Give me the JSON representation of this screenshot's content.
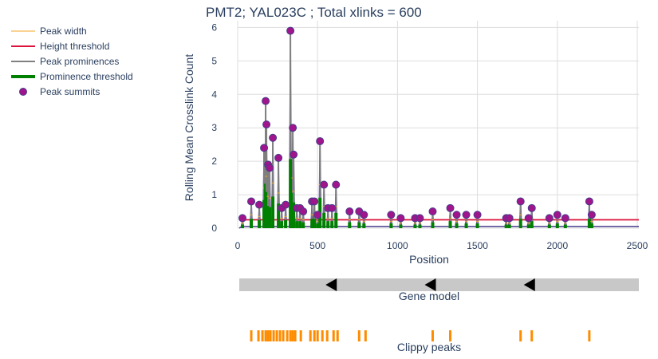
{
  "colors": {
    "peak_width": "#f5a623",
    "height_threshold": "#dc143c",
    "prominence": "#808080",
    "prominence_threshold": "#008000",
    "summit_fill": "#a0148c",
    "summit_edge": "#483d8b",
    "signal": "#483d8b",
    "gene_track": "#c8c8c8",
    "clippy_peaks": "#ff8c00",
    "text": "#2a3f5f",
    "grid": "#dddddd"
  },
  "chart_data": {
    "type": "line",
    "title": "PMT2; YAL023C ; Total xlinks = 600",
    "xlabel": "Position",
    "ylabel": "Rolling Mean Crosslink Count",
    "xlim": [
      0,
      2510
    ],
    "ylim": [
      0,
      6.2
    ],
    "x_ticks": [
      0,
      500,
      1000,
      1500,
      2000,
      2500
    ],
    "y_ticks": [
      0,
      1,
      2,
      3,
      4,
      5,
      6
    ],
    "grid": true,
    "legend_position": "left",
    "legend": [
      "Peak width",
      "Height threshold",
      "Peak prominences",
      "Prominence threshold",
      "Peak summits"
    ],
    "height_threshold": 0.25,
    "height_threshold_x": [
      10,
      2510
    ],
    "peak_summits": [
      {
        "x": 30,
        "y": 0.3
      },
      {
        "x": 85,
        "y": 0.8
      },
      {
        "x": 135,
        "y": 0.7
      },
      {
        "x": 165,
        "y": 2.4
      },
      {
        "x": 175,
        "y": 3.8
      },
      {
        "x": 180,
        "y": 3.1
      },
      {
        "x": 190,
        "y": 1.9
      },
      {
        "x": 200,
        "y": 1.8
      },
      {
        "x": 220,
        "y": 2.7
      },
      {
        "x": 255,
        "y": 2.1
      },
      {
        "x": 275,
        "y": 0.6
      },
      {
        "x": 300,
        "y": 0.7
      },
      {
        "x": 330,
        "y": 5.9
      },
      {
        "x": 345,
        "y": 3.0
      },
      {
        "x": 350,
        "y": 2.2
      },
      {
        "x": 370,
        "y": 0.6
      },
      {
        "x": 390,
        "y": 0.6
      },
      {
        "x": 410,
        "y": 0.5
      },
      {
        "x": 465,
        "y": 0.8
      },
      {
        "x": 480,
        "y": 0.8
      },
      {
        "x": 500,
        "y": 0.4
      },
      {
        "x": 515,
        "y": 2.6
      },
      {
        "x": 540,
        "y": 1.3
      },
      {
        "x": 565,
        "y": 0.6
      },
      {
        "x": 590,
        "y": 0.6
      },
      {
        "x": 615,
        "y": 1.3
      },
      {
        "x": 700,
        "y": 0.5
      },
      {
        "x": 760,
        "y": 0.5
      },
      {
        "x": 790,
        "y": 0.4
      },
      {
        "x": 960,
        "y": 0.4
      },
      {
        "x": 1020,
        "y": 0.3
      },
      {
        "x": 1110,
        "y": 0.3
      },
      {
        "x": 1140,
        "y": 0.3
      },
      {
        "x": 1220,
        "y": 0.5
      },
      {
        "x": 1330,
        "y": 0.6
      },
      {
        "x": 1370,
        "y": 0.4
      },
      {
        "x": 1430,
        "y": 0.4
      },
      {
        "x": 1500,
        "y": 0.4
      },
      {
        "x": 1680,
        "y": 0.3
      },
      {
        "x": 1700,
        "y": 0.3
      },
      {
        "x": 1770,
        "y": 0.8
      },
      {
        "x": 1820,
        "y": 0.3
      },
      {
        "x": 1840,
        "y": 0.6
      },
      {
        "x": 1950,
        "y": 0.3
      },
      {
        "x": 2000,
        "y": 0.4
      },
      {
        "x": 2050,
        "y": 0.3
      },
      {
        "x": 2200,
        "y": 0.8
      },
      {
        "x": 2215,
        "y": 0.4
      }
    ],
    "gene_model": {
      "label": "Gene model",
      "start": 10,
      "end": 2510,
      "direction_arrows": [
        620,
        1240,
        1860
      ]
    },
    "clippy_peaks": {
      "label": "Clippy peaks",
      "x": [
        85,
        130,
        155,
        175,
        190,
        205,
        225,
        245,
        265,
        285,
        310,
        330,
        345,
        360,
        395,
        455,
        480,
        500,
        530,
        560,
        600,
        625,
        760,
        800,
        1220,
        1330,
        1770,
        1840,
        2200
      ]
    }
  }
}
